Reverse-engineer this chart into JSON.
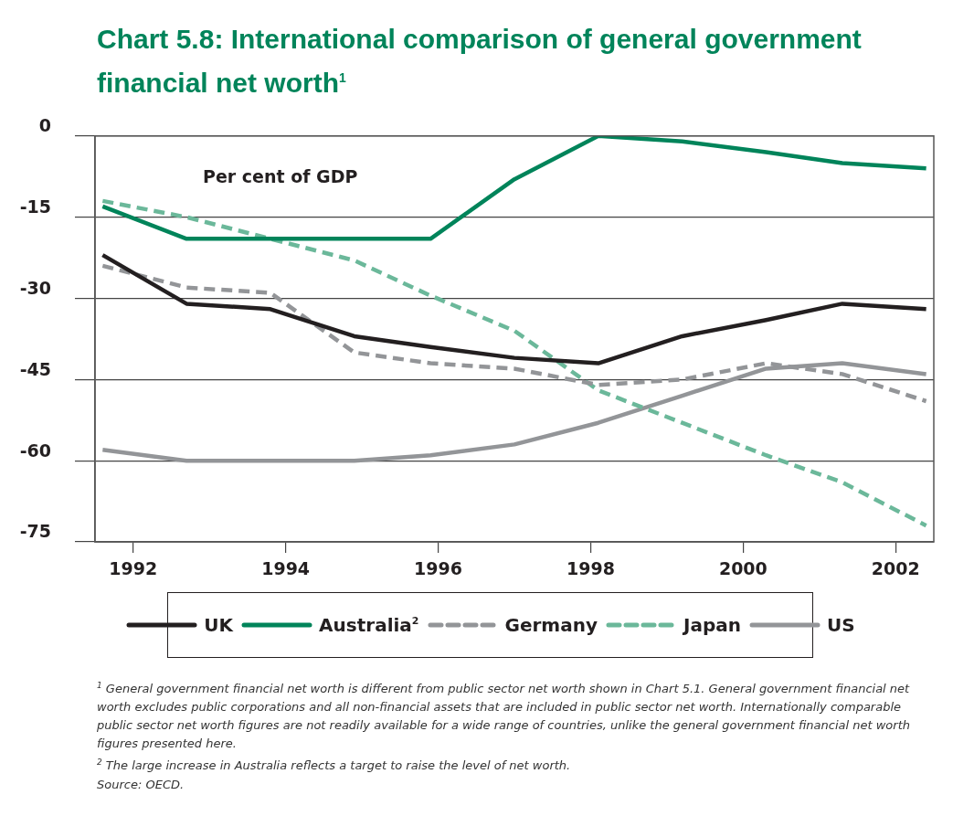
{
  "chart_data": {
    "type": "line",
    "title": "Chart 5.8: International comparison of general government financial net worth$^{1}$",
    "ylabel": "Per cent of GDP",
    "x": [
      1991.6,
      1992.7,
      1993.8,
      1994.9,
      1995.9,
      1997.0,
      1998.1,
      1999.2,
      2000.3,
      2001.3,
      2002.4
    ],
    "xlim": [
      1991.5,
      2002.5
    ],
    "xticks": [
      1992,
      1994,
      1996,
      1998,
      2000,
      2002
    ],
    "ylim": [
      -75,
      0
    ],
    "yticks": [
      0,
      -15,
      -30,
      -45,
      -60,
      -75
    ],
    "grid": "y",
    "legend": "bottom",
    "marker": "none",
    "series": [
      {
        "name": "UK",
        "color": "#231f20",
        "line_style": "solid",
        "values": [
          -22,
          -31,
          -32,
          -37,
          -39,
          -41,
          -42,
          -37,
          -34,
          -31,
          -32
        ]
      },
      {
        "name": "Australia$^{2}$",
        "color": "#00845a",
        "line_style": "solid",
        "values": [
          -13,
          -19,
          -19,
          -19,
          -19,
          -8,
          0,
          -1,
          -3,
          -5,
          -6
        ]
      },
      {
        "name": "Germany",
        "color": "#939598",
        "line_style": "dashed",
        "values": [
          -24,
          -28,
          -29,
          -40,
          -42,
          -43,
          -46,
          -45,
          -42,
          -44,
          -49
        ]
      },
      {
        "name": "Japan",
        "color": "#6bb89a",
        "line_style": "dashed",
        "values": [
          -12,
          -15,
          -19,
          -23,
          -29.5,
          -36,
          -47,
          -53,
          -59,
          -64,
          -72
        ]
      },
      {
        "name": "US",
        "color": "#939598",
        "line_style": "solid",
        "values": [
          -58,
          -60,
          -60,
          -60,
          -59,
          -57,
          -53,
          -48,
          -43,
          -42,
          -44
        ]
      }
    ],
    "annotations": [
      "$^{1}$ General government financial net worth is different from public sector net worth shown in Chart 5.1. General government financial net worth excludes public corporations and all non-financial assets that are included in public sector net worth. Internationally comparable public sector net worth figures are not readily available for a wide range of countries, unlike the general government financial net worth figures presented here.",
      "$^{2}$ The large increase in Australia reflects a target to raise the level of net worth.",
      "Source: OECD."
    ]
  }
}
